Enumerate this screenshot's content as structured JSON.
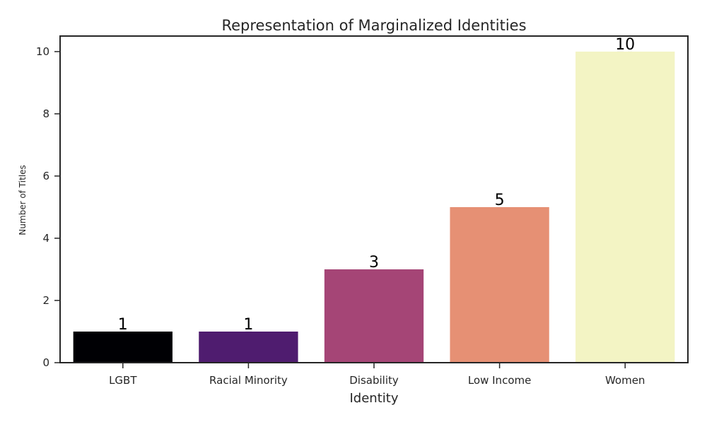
{
  "chart_data": {
    "type": "bar",
    "title": "Representation of Marginalized Identities",
    "xlabel": "Identity",
    "ylabel": "Number of Titles",
    "categories": [
      "LGBT",
      "Racial Minority",
      "Disability",
      "Low Income",
      "Women"
    ],
    "values": [
      1,
      1,
      3,
      5,
      10
    ],
    "data_labels": [
      "1",
      "1",
      "3",
      "5",
      "10"
    ],
    "bar_colors": [
      "#000004",
      "#4f1c6f",
      "#a54576",
      "#e69074",
      "#f3f4c4"
    ],
    "ylim": [
      0,
      10.5
    ],
    "yticks": [
      0,
      2,
      4,
      6,
      8,
      10
    ],
    "grid": false,
    "legend": "none"
  }
}
